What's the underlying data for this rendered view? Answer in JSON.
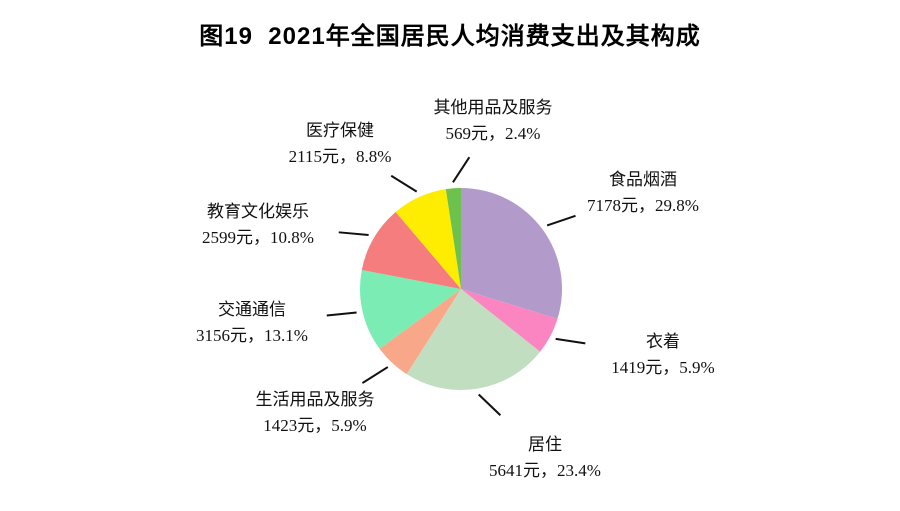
{
  "chart_data": {
    "type": "pie",
    "title": "图19  2021年全国居民人均消费支出及其构成",
    "unit": "元",
    "direction": "clockwise",
    "start_angle_deg": 0,
    "legend": "none (callout labels around pie)",
    "slices": [
      {
        "label": "食品烟酒",
        "value": 7178,
        "pct": 29.8,
        "value_text": "7178元，29.8%",
        "color": "#b29bca"
      },
      {
        "label": "衣着",
        "value": 1419,
        "pct": 5.9,
        "value_text": "1419元，5.9%",
        "color": "#fa85c0"
      },
      {
        "label": "居住",
        "value": 5641,
        "pct": 23.4,
        "value_text": "5641元，23.4%",
        "color": "#c1dec1"
      },
      {
        "label": "生活用品及服务",
        "value": 1423,
        "pct": 5.9,
        "value_text": "1423元，5.9%",
        "color": "#f8a888"
      },
      {
        "label": "交通通信",
        "value": 3156,
        "pct": 13.1,
        "value_text": "3156元，13.1%",
        "color": "#7becb4"
      },
      {
        "label": "教育文化娱乐",
        "value": 2599,
        "pct": 10.8,
        "value_text": "2599元，10.8%",
        "color": "#f57d7d"
      },
      {
        "label": "医疗保健",
        "value": 2115,
        "pct": 8.8,
        "value_text": "2115元，8.8%",
        "color": "#feed00"
      },
      {
        "label": "其他用品及服务",
        "value": 569,
        "pct": 2.4,
        "value_text": "569元，2.4%",
        "color": "#6dc14d"
      }
    ],
    "leader_line_color": "#111111"
  }
}
